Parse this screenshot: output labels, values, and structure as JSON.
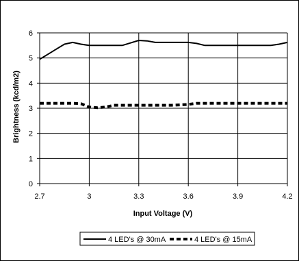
{
  "chart_data": {
    "type": "line",
    "title": "",
    "xlabel": "Input Voltage (V)",
    "ylabel": "Brightness (kcd/m2)",
    "xlim": [
      2.7,
      4.2
    ],
    "ylim": [
      0,
      6
    ],
    "x_ticks": [
      "2.7",
      "3",
      "3.3",
      "3.6",
      "3.9",
      "4.2"
    ],
    "y_ticks": [
      "0",
      "1",
      "2",
      "3",
      "4",
      "5",
      "6"
    ],
    "grid": "horizontal",
    "legend_position": "bottom",
    "series": [
      {
        "name": "4 LED's @ 30mA",
        "style": "solid",
        "color": "#000000",
        "x": [
          2.7,
          2.75,
          2.8,
          2.85,
          2.9,
          2.95,
          3.0,
          3.05,
          3.1,
          3.15,
          3.2,
          3.25,
          3.3,
          3.35,
          3.4,
          3.5,
          3.6,
          3.65,
          3.7,
          3.8,
          3.9,
          4.0,
          4.1,
          4.15,
          4.2
        ],
        "y": [
          4.95,
          5.15,
          5.35,
          5.55,
          5.62,
          5.55,
          5.5,
          5.5,
          5.5,
          5.5,
          5.5,
          5.6,
          5.7,
          5.68,
          5.62,
          5.62,
          5.62,
          5.58,
          5.5,
          5.5,
          5.5,
          5.5,
          5.5,
          5.55,
          5.62
        ]
      },
      {
        "name": "4 LED's @ 15mA",
        "style": "dashed",
        "color": "#000000",
        "x": [
          2.7,
          2.75,
          2.8,
          2.85,
          2.9,
          2.95,
          3.0,
          3.05,
          3.1,
          3.15,
          3.2,
          3.3,
          3.4,
          3.5,
          3.6,
          3.65,
          3.7,
          3.8,
          3.9,
          4.0,
          4.1,
          4.2
        ],
        "y": [
          3.2,
          3.2,
          3.2,
          3.2,
          3.2,
          3.18,
          3.05,
          3.02,
          3.05,
          3.12,
          3.12,
          3.12,
          3.12,
          3.12,
          3.15,
          3.2,
          3.2,
          3.2,
          3.2,
          3.2,
          3.2,
          3.2
        ]
      }
    ]
  }
}
